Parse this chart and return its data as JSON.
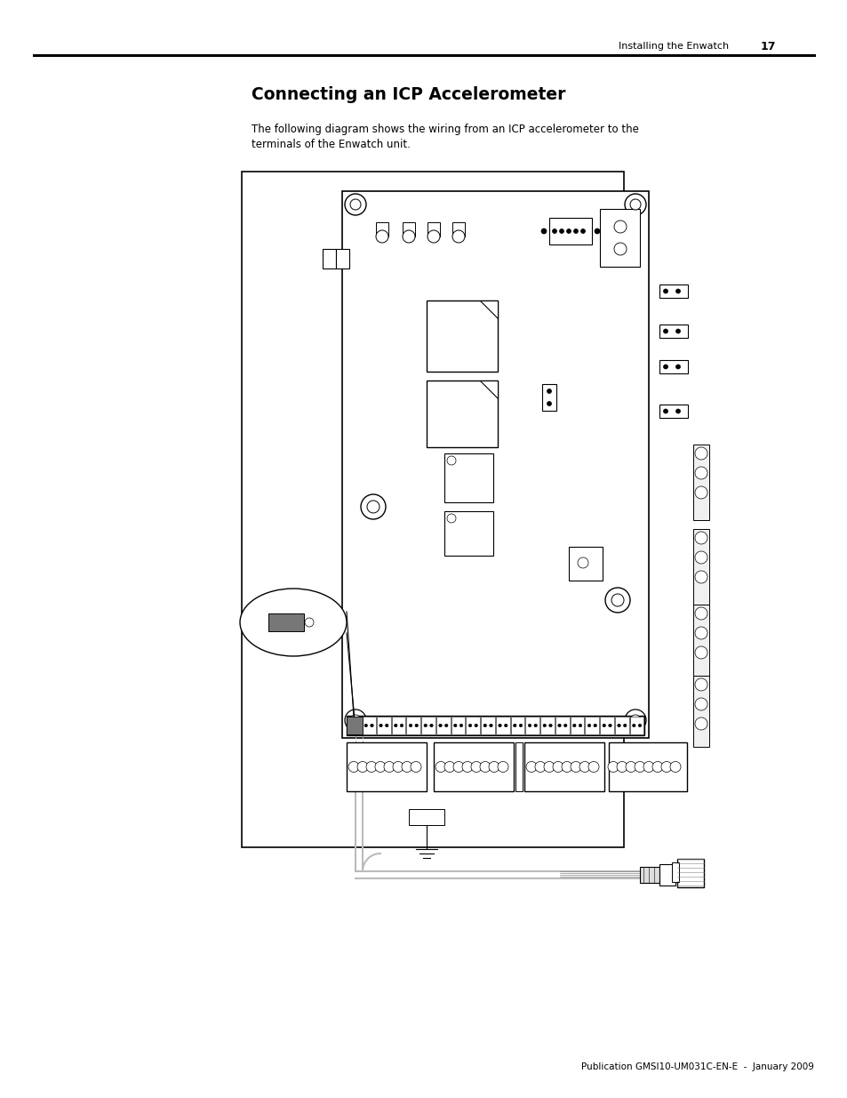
{
  "page_bg": "#ffffff",
  "header_text": "Installing the Enwatch",
  "header_number": "17",
  "title": "Connecting an ICP Accelerometer",
  "body_text_1": "The following diagram shows the wiring from an ICP accelerometer to the",
  "body_text_2": "terminals of the Enwatch unit.",
  "footer_text": "Publication GMSI10-UM031C-EN-E  -  January 2009",
  "line_color": "#000000",
  "gray_light": "#cccccc",
  "gray_med": "#888888",
  "gray_dark": "#555555"
}
